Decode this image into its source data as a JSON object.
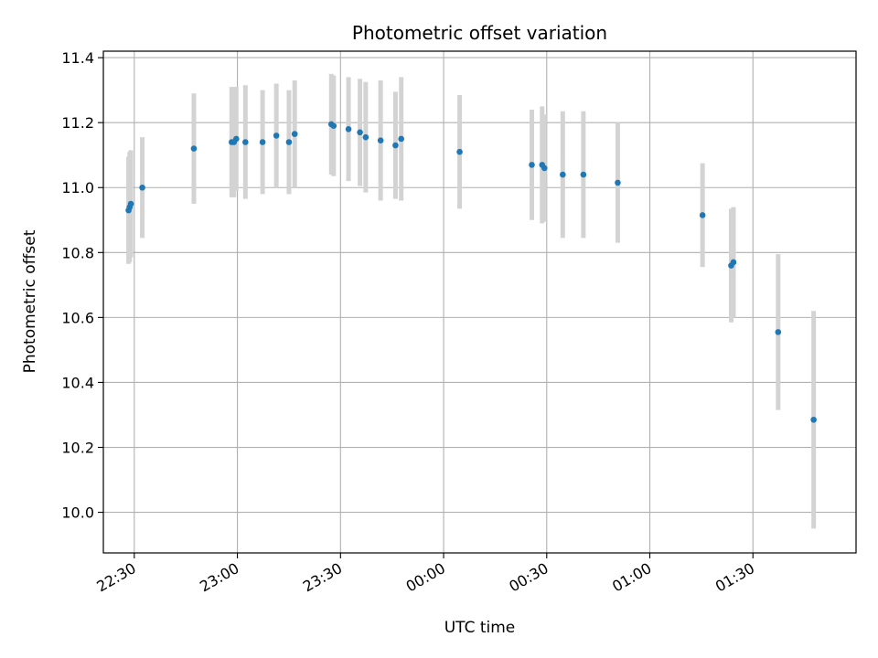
{
  "chart_data": {
    "type": "scatter",
    "title": "Photometric offset variation",
    "xlabel": "UTC time",
    "ylabel": "Photometric offset",
    "x_axis": {
      "kind": "time",
      "range": [
        "22:21:00",
        "02:00:00"
      ],
      "ticks": [
        {
          "value": "22:30:00",
          "label": "22:30"
        },
        {
          "value": "23:00:00",
          "label": "23:00"
        },
        {
          "value": "23:30:00",
          "label": "23:30"
        },
        {
          "value": "00:00:00",
          "label": "00:00"
        },
        {
          "value": "00:30:00",
          "label": "00:30"
        },
        {
          "value": "01:00:00",
          "label": "01:00"
        },
        {
          "value": "01:30:00",
          "label": "01:30"
        }
      ]
    },
    "y_axis": {
      "range": [
        9.875,
        11.42
      ],
      "ticks": [
        10.0,
        10.2,
        10.4,
        10.6,
        10.8,
        11.0,
        11.2,
        11.4
      ],
      "tick_labels": [
        "10.0",
        "10.2",
        "10.4",
        "10.6",
        "10.8",
        "11.0",
        "11.2",
        "11.4"
      ]
    },
    "grid": true,
    "marker_color": "#1f77b4",
    "errorbar_color": "#d3d3d3",
    "points": [
      {
        "x": "22:28:20",
        "y": 10.93,
        "err": 0.165
      },
      {
        "x": "22:28:40",
        "y": 10.94,
        "err": 0.17
      },
      {
        "x": "22:29:00",
        "y": 10.95,
        "err": 0.165
      },
      {
        "x": "22:32:20",
        "y": 11.0,
        "err": 0.155
      },
      {
        "x": "22:47:20",
        "y": 11.12,
        "err": 0.17
      },
      {
        "x": "22:58:20",
        "y": 11.14,
        "err": 0.17
      },
      {
        "x": "22:59:00",
        "y": 11.14,
        "err": 0.17
      },
      {
        "x": "22:59:40",
        "y": 11.15,
        "err": 0.16
      },
      {
        "x": "23:02:20",
        "y": 11.14,
        "err": 0.175
      },
      {
        "x": "23:07:20",
        "y": 11.14,
        "err": 0.16
      },
      {
        "x": "23:11:20",
        "y": 11.16,
        "err": 0.16
      },
      {
        "x": "23:15:00",
        "y": 11.14,
        "err": 0.16
      },
      {
        "x": "23:16:40",
        "y": 11.165,
        "err": 0.165
      },
      {
        "x": "23:27:20",
        "y": 11.195,
        "err": 0.155
      },
      {
        "x": "23:28:00",
        "y": 11.19,
        "err": 0.155
      },
      {
        "x": "23:32:20",
        "y": 11.18,
        "err": 0.16
      },
      {
        "x": "23:35:40",
        "y": 11.17,
        "err": 0.165
      },
      {
        "x": "23:37:20",
        "y": 11.155,
        "err": 0.17
      },
      {
        "x": "23:41:40",
        "y": 11.145,
        "err": 0.185
      },
      {
        "x": "23:46:00",
        "y": 11.13,
        "err": 0.165
      },
      {
        "x": "23:47:40",
        "y": 11.15,
        "err": 0.19
      },
      {
        "x": "00:04:40",
        "y": 11.11,
        "err": 0.175
      },
      {
        "x": "00:25:40",
        "y": 11.07,
        "err": 0.17
      },
      {
        "x": "00:28:40",
        "y": 11.07,
        "err": 0.18
      },
      {
        "x": "00:29:20",
        "y": 11.06,
        "err": 0.165
      },
      {
        "x": "00:34:40",
        "y": 11.04,
        "err": 0.195
      },
      {
        "x": "00:40:40",
        "y": 11.04,
        "err": 0.195
      },
      {
        "x": "00:50:40",
        "y": 11.015,
        "err": 0.185
      },
      {
        "x": "01:15:20",
        "y": 10.915,
        "err": 0.16
      },
      {
        "x": "01:23:40",
        "y": 10.76,
        "err": 0.175
      },
      {
        "x": "01:24:20",
        "y": 10.77,
        "err": 0.17
      },
      {
        "x": "01:37:20",
        "y": 10.555,
        "err": 0.24
      },
      {
        "x": "01:47:40",
        "y": 10.285,
        "err": 0.335
      }
    ]
  }
}
